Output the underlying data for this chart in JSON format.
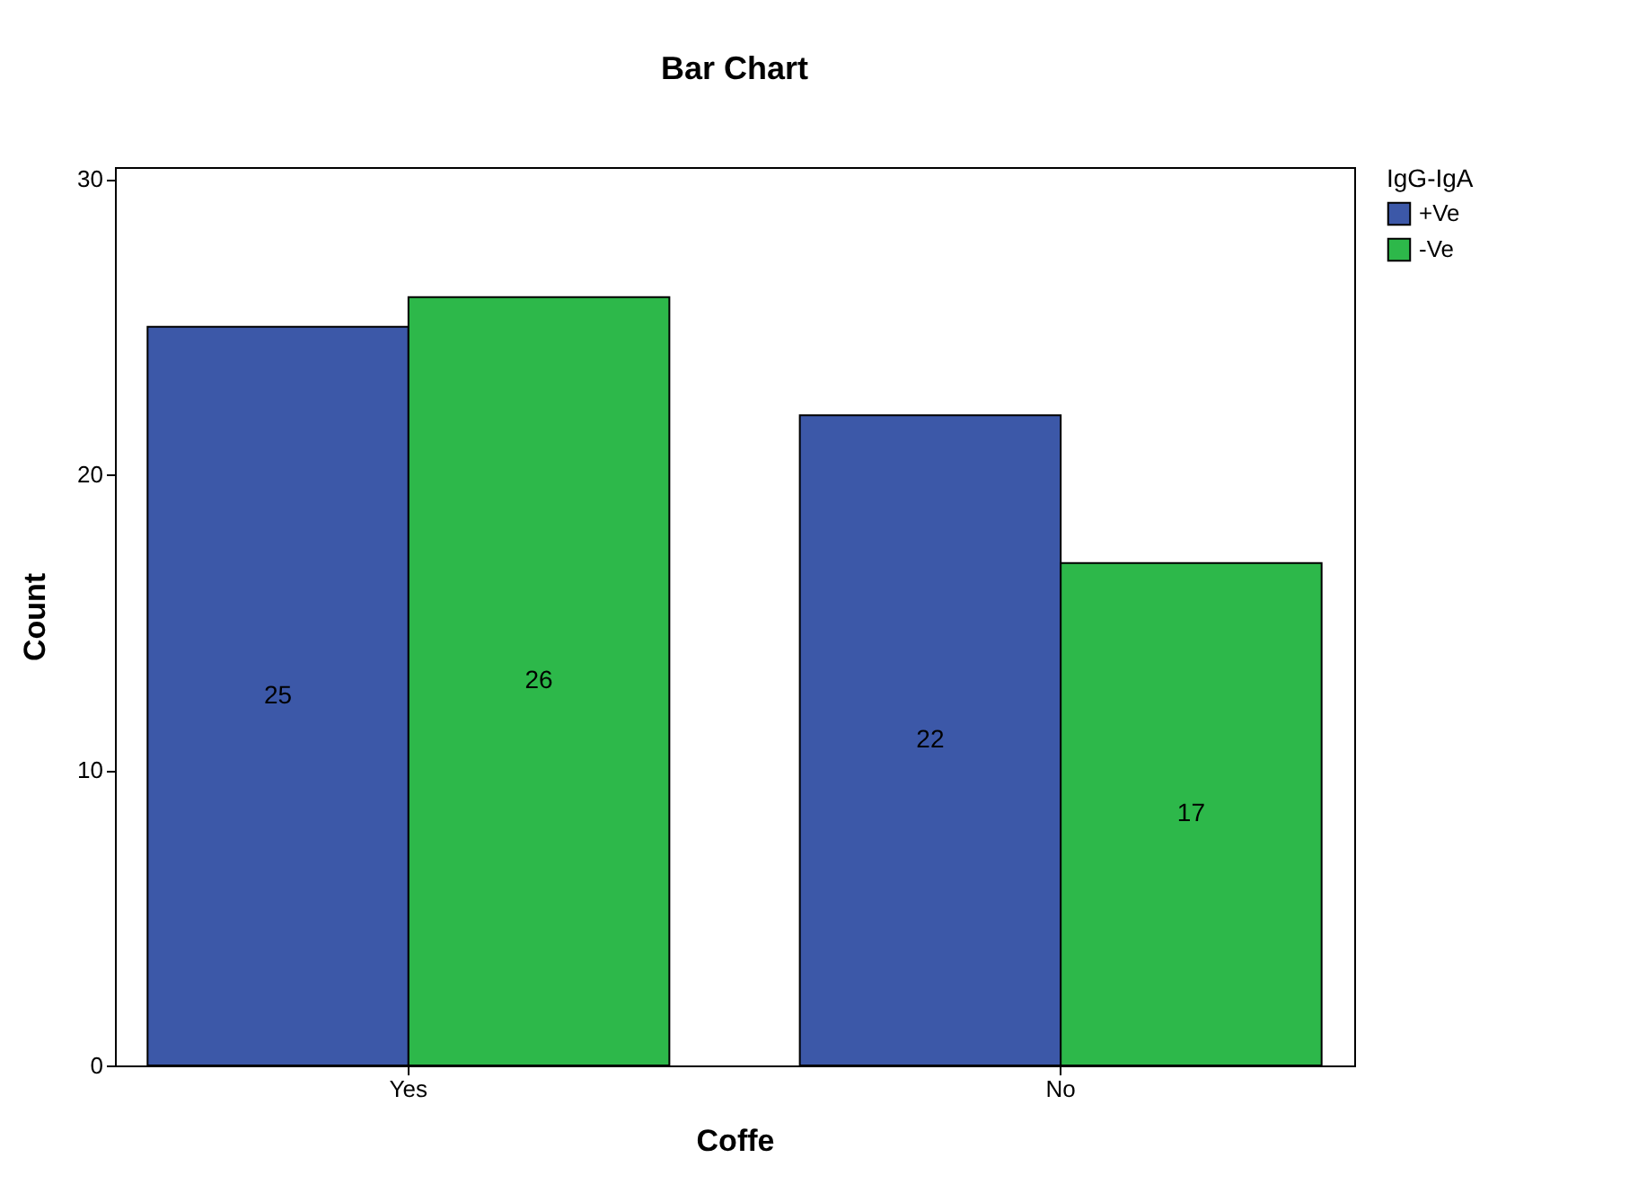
{
  "chart_data": {
    "type": "bar",
    "title": "Bar Chart",
    "xlabel": "Coffe",
    "ylabel": "Count",
    "legend_title": "IgG-IgA",
    "categories": [
      "Yes",
      "No"
    ],
    "series": [
      {
        "name": "+Ve",
        "color": "#3c58a8",
        "values": [
          25,
          22
        ]
      },
      {
        "name": "-Ve",
        "color": "#2db84a",
        "values": [
          26,
          17
        ]
      }
    ],
    "ylim": [
      0,
      30.4
    ],
    "yticks": [
      0,
      10,
      20,
      30
    ],
    "grid": false,
    "legend": "top right",
    "data_labels": true
  }
}
